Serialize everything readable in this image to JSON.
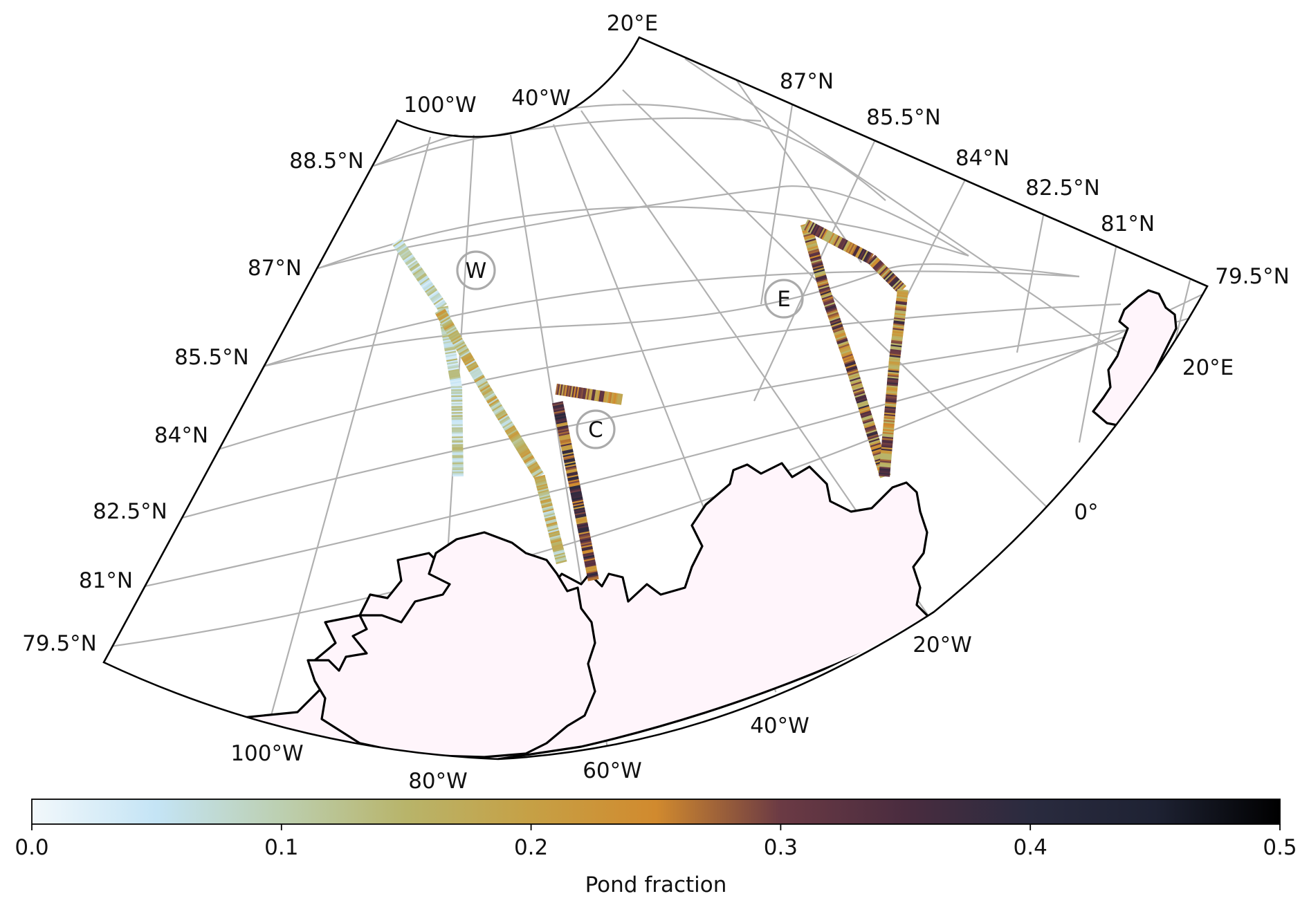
{
  "map": {
    "meridian_labels_top": [
      "20°E",
      "100°W",
      "40°W"
    ],
    "parallel_labels_right": [
      "87°N",
      "85.5°N",
      "84°N",
      "82.5°N",
      "81°N",
      "79.5°N"
    ],
    "parallel_labels_left": [
      "88.5°N",
      "87°N",
      "85.5°N",
      "84°N",
      "82.5°N",
      "81°N",
      "79.5°N"
    ],
    "meridian_labels_bottom": [
      "100°W",
      "80°W",
      "60°W",
      "40°W",
      "20°W",
      "0°",
      "20°E"
    ],
    "regions": [
      {
        "id": "W",
        "label": "W"
      },
      {
        "id": "C",
        "label": "C"
      },
      {
        "id": "E",
        "label": "E"
      }
    ]
  },
  "colorbar": {
    "label": "Pond fraction",
    "min": 0.0,
    "max": 0.5,
    "ticks": [
      "0.0",
      "0.1",
      "0.2",
      "0.3",
      "0.4",
      "0.5"
    ],
    "stops": [
      {
        "v": 0.0,
        "color": "#f2f8fb"
      },
      {
        "v": 0.05,
        "color": "#c4e4f5"
      },
      {
        "v": 0.1,
        "color": "#bccfb0"
      },
      {
        "v": 0.15,
        "color": "#b8b46a"
      },
      {
        "v": 0.2,
        "color": "#c6a045"
      },
      {
        "v": 0.25,
        "color": "#d18a2e"
      },
      {
        "v": 0.3,
        "color": "#6b3a44"
      },
      {
        "v": 0.35,
        "color": "#4a2c3f"
      },
      {
        "v": 0.4,
        "color": "#2a2b3f"
      },
      {
        "v": 0.45,
        "color": "#1e2233"
      },
      {
        "v": 0.5,
        "color": "#000000"
      }
    ]
  },
  "flight_tracks": [
    {
      "region": "W",
      "segment": "western leg",
      "pond_fraction_typical": 0.08,
      "pond_fraction_range": [
        0.03,
        0.17
      ]
    },
    {
      "region": "W",
      "segment": "eastern leg",
      "pond_fraction_typical": 0.14,
      "pond_fraction_range": [
        0.06,
        0.22
      ]
    },
    {
      "region": "C",
      "segment": "short top leg",
      "pond_fraction_typical": 0.25,
      "pond_fraction_range": [
        0.18,
        0.34
      ]
    },
    {
      "region": "C",
      "segment": "long leg",
      "pond_fraction_typical": 0.3,
      "pond_fraction_range": [
        0.2,
        0.45
      ]
    },
    {
      "region": "E",
      "segment": "loop",
      "pond_fraction_typical": 0.25,
      "pond_fraction_range": [
        0.15,
        0.42
      ]
    }
  ]
}
